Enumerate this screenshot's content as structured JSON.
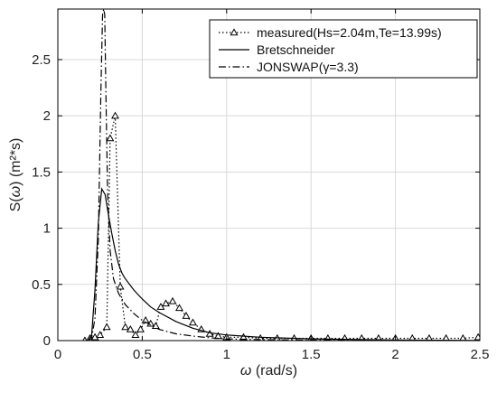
{
  "chart_data": {
    "type": "line",
    "title": "",
    "xlabel_symbol": "ω",
    "xlabel_unit": " (rad/s)",
    "ylabel_prefix": "S(",
    "ylabel_symbol": "ω",
    "ylabel_suffix": ") (m²*s)",
    "xlim": [
      0,
      2.5
    ],
    "ylim": [
      0,
      2.95
    ],
    "x_ticks": [
      0,
      0.5,
      1,
      1.5,
      2,
      2.5
    ],
    "x_tick_labels": [
      "0",
      "0.5",
      "1",
      "1.5",
      "2",
      "2.5"
    ],
    "y_ticks": [
      0,
      0.5,
      1,
      1.5,
      2,
      2.5
    ],
    "y_tick_labels": [
      "0",
      "0.5",
      "1",
      "1.5",
      "2",
      "2.5"
    ],
    "grid": true,
    "legend_position": "top-right",
    "series": [
      {
        "name": "measured(Hs=2.04m,Te=13.99s)",
        "style": "dotted-triangle",
        "color": "#000000",
        "x": [
          0.16,
          0.19,
          0.22,
          0.25,
          0.29,
          0.31,
          0.34,
          0.37,
          0.4,
          0.43,
          0.46,
          0.49,
          0.52,
          0.55,
          0.58,
          0.61,
          0.64,
          0.68,
          0.72,
          0.76,
          0.8,
          0.85,
          0.9,
          0.95,
          1.0,
          1.1,
          1.2,
          1.3,
          1.4,
          1.5,
          1.6,
          1.7,
          1.8,
          1.9,
          2.0,
          2.1,
          2.2,
          2.3,
          2.4,
          2.49
        ],
        "y": [
          0.0,
          0.02,
          0.03,
          0.05,
          0.12,
          1.8,
          2.0,
          0.48,
          0.12,
          0.1,
          0.05,
          0.1,
          0.18,
          0.15,
          0.13,
          0.3,
          0.33,
          0.35,
          0.29,
          0.22,
          0.16,
          0.1,
          0.06,
          0.04,
          0.03,
          0.03,
          0.02,
          0.02,
          0.02,
          0.02,
          0.02,
          0.02,
          0.02,
          0.02,
          0.02,
          0.02,
          0.02,
          0.02,
          0.02,
          0.03
        ]
      },
      {
        "name": "Bretschneider",
        "style": "solid",
        "color": "#000000",
        "x": [
          0.18,
          0.2,
          0.22,
          0.24,
          0.26,
          0.28,
          0.3,
          0.32,
          0.34,
          0.36,
          0.38,
          0.4,
          0.45,
          0.5,
          0.55,
          0.6,
          0.7,
          0.8,
          0.9,
          1.0,
          1.2,
          1.5,
          2.0,
          2.5
        ],
        "y": [
          0.0,
          0.05,
          0.45,
          1.05,
          1.35,
          1.3,
          1.12,
          0.95,
          0.8,
          0.68,
          0.6,
          0.55,
          0.45,
          0.37,
          0.3,
          0.25,
          0.17,
          0.11,
          0.07,
          0.05,
          0.03,
          0.015,
          0.005,
          0.002
        ]
      },
      {
        "name": "JONSWAP(γ=3.3)",
        "style": "dash-dot",
        "color": "#000000",
        "x": [
          0.18,
          0.2,
          0.22,
          0.24,
          0.255,
          0.265,
          0.272,
          0.278,
          0.285,
          0.295,
          0.31,
          0.33,
          0.36,
          0.4,
          0.45,
          0.5,
          0.55,
          0.6,
          0.7,
          0.8,
          0.9,
          1.0,
          1.2,
          1.5,
          2.0,
          2.5
        ],
        "y": [
          0.0,
          0.02,
          0.2,
          0.9,
          2.2,
          2.9,
          2.95,
          2.9,
          2.2,
          1.3,
          0.8,
          0.55,
          0.42,
          0.32,
          0.24,
          0.18,
          0.14,
          0.1,
          0.06,
          0.04,
          0.025,
          0.015,
          0.008,
          0.004,
          0.001,
          0.0
        ]
      }
    ]
  }
}
